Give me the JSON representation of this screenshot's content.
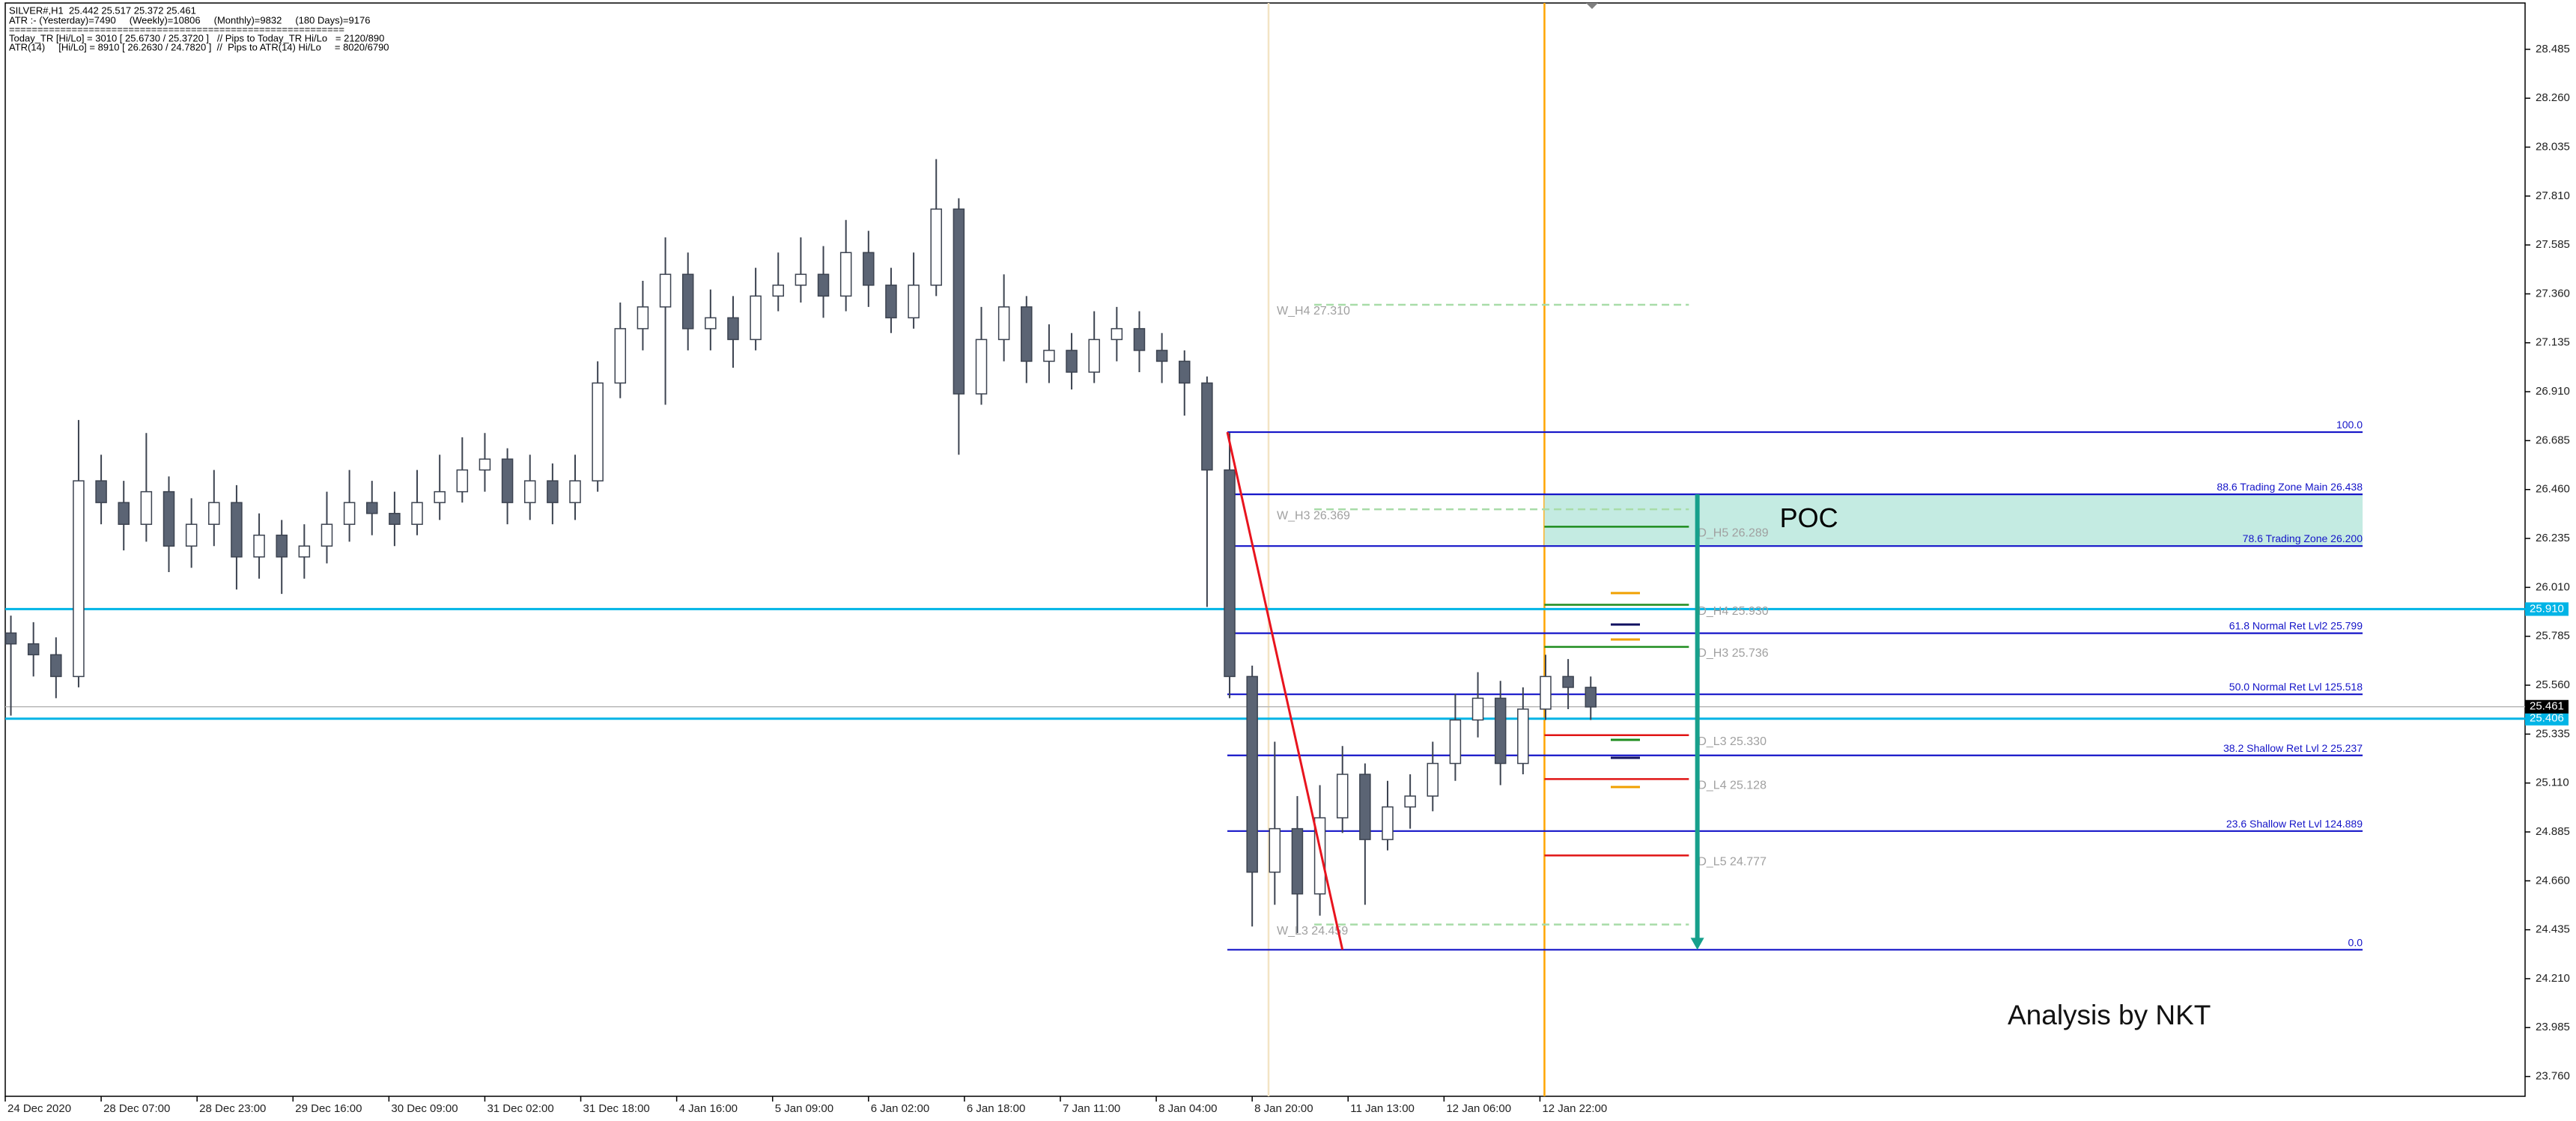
{
  "chart_data": {
    "type": "candlestick",
    "title": "SILVER#,H1  25.442 25.517 25.372 25.461",
    "info_lines": [
      "ATR :- (Yesterday)=7490     (Weekly)=10806     (Monthly)=9832     (180 Days)=9176",
      "===========================================================",
      "Today_TR [Hi/Lo] = 3010 [ 25.6730 / 25.3720 ]   // Pips to Today_TR Hi/Lo   = 2120/890",
      "ATR(14)     [Hi/Lo] = 8910 [ 26.2630 / 24.7820 ]  //  Pips to ATR(14) Hi/Lo     = 8020/6790"
    ],
    "x": [
      1,
      5,
      9,
      13,
      17,
      21,
      25,
      29,
      33,
      37,
      41,
      45,
      49,
      53,
      57,
      61,
      65,
      69,
      73,
      77,
      81,
      85,
      89,
      93,
      97,
      101,
      105,
      109,
      113,
      117,
      121,
      125,
      129,
      133,
      137,
      141,
      145,
      149,
      153,
      157,
      161,
      165,
      169,
      173,
      177,
      181,
      185,
      189,
      193,
      197,
      201,
      205,
      209,
      213,
      217,
      221,
      225,
      229,
      233,
      237,
      241,
      245,
      249,
      253,
      257,
      261,
      265,
      269,
      273,
      277,
      281
    ],
    "open": [
      25.8,
      25.75,
      25.7,
      25.6,
      26.5,
      26.4,
      26.3,
      26.45,
      26.2,
      26.3,
      26.4,
      26.15,
      26.25,
      26.15,
      26.2,
      26.3,
      26.4,
      26.35,
      26.3,
      26.4,
      26.45,
      26.55,
      26.6,
      26.4,
      26.5,
      26.4,
      26.5,
      26.95,
      27.2,
      27.3,
      27.45,
      27.2,
      27.25,
      27.15,
      27.35,
      27.4,
      27.45,
      27.35,
      27.55,
      27.4,
      27.25,
      27.4,
      27.75,
      26.9,
      27.15,
      27.3,
      27.05,
      27.1,
      27.0,
      27.15,
      27.2,
      27.1,
      27.05,
      26.95,
      26.55,
      25.6,
      24.7,
      24.9,
      24.6,
      24.95,
      25.15,
      24.85,
      25.0,
      25.05,
      25.2,
      25.4,
      25.5,
      25.2,
      25.45,
      25.6,
      25.55
    ],
    "high": [
      25.88,
      25.85,
      25.78,
      26.78,
      26.62,
      26.5,
      26.72,
      26.52,
      26.42,
      26.55,
      26.48,
      26.35,
      26.32,
      26.3,
      26.45,
      26.55,
      26.5,
      26.45,
      26.55,
      26.62,
      26.7,
      26.72,
      26.65,
      26.62,
      26.58,
      26.62,
      27.05,
      27.32,
      27.42,
      27.62,
      27.55,
      27.38,
      27.35,
      27.48,
      27.55,
      27.62,
      27.58,
      27.7,
      27.65,
      27.48,
      27.55,
      27.98,
      27.8,
      27.3,
      27.45,
      27.35,
      27.22,
      27.18,
      27.28,
      27.3,
      27.28,
      27.18,
      27.1,
      26.98,
      26.72,
      25.65,
      25.3,
      25.05,
      25.1,
      25.28,
      25.2,
      25.12,
      25.15,
      25.3,
      25.52,
      25.62,
      25.58,
      25.55,
      25.7,
      25.68,
      25.6
    ],
    "low": [
      25.42,
      25.6,
      25.5,
      25.55,
      26.3,
      26.18,
      26.22,
      26.08,
      26.1,
      26.2,
      26.0,
      26.05,
      25.98,
      26.05,
      26.12,
      26.22,
      26.25,
      26.2,
      26.25,
      26.32,
      26.4,
      26.45,
      26.3,
      26.32,
      26.3,
      26.32,
      26.45,
      26.88,
      27.1,
      26.85,
      27.1,
      27.1,
      27.02,
      27.1,
      27.28,
      27.32,
      27.25,
      27.28,
      27.3,
      27.18,
      27.2,
      27.35,
      26.62,
      26.85,
      27.05,
      26.95,
      26.95,
      26.92,
      26.95,
      27.05,
      27.0,
      26.95,
      26.8,
      25.92,
      25.5,
      24.45,
      24.55,
      24.42,
      24.5,
      24.88,
      24.55,
      24.8,
      24.9,
      24.98,
      25.12,
      25.32,
      25.1,
      25.15,
      25.4,
      25.45,
      25.4
    ],
    "close": [
      25.75,
      25.7,
      25.6,
      26.5,
      26.4,
      26.3,
      26.45,
      26.2,
      26.3,
      26.4,
      26.15,
      26.25,
      26.15,
      26.2,
      26.3,
      26.4,
      26.35,
      26.3,
      26.4,
      26.45,
      26.55,
      26.6,
      26.4,
      26.5,
      26.4,
      26.5,
      26.95,
      27.2,
      27.3,
      27.45,
      27.2,
      27.25,
      27.15,
      27.35,
      27.4,
      27.45,
      27.35,
      27.55,
      27.4,
      27.25,
      27.4,
      27.75,
      26.9,
      27.15,
      27.3,
      27.05,
      27.1,
      27.0,
      27.15,
      27.2,
      27.1,
      27.05,
      26.95,
      26.55,
      25.6,
      24.7,
      24.9,
      24.6,
      24.95,
      25.15,
      24.85,
      25.0,
      25.05,
      25.2,
      25.4,
      25.5,
      25.2,
      25.45,
      25.6,
      25.55,
      25.46
    ],
    "up_color": "#ffffff",
    "down_color": "#5b6474",
    "wick_color": "#3c4350",
    "xlim": [
      0,
      446.6
    ],
    "xticks": [
      {
        "value": 0,
        "label": "24 Dec 2020"
      },
      {
        "value": 17,
        "label": "28 Dec 07:00"
      },
      {
        "value": 34,
        "label": "28 Dec 23:00"
      },
      {
        "value": 51,
        "label": "29 Dec 16:00"
      },
      {
        "value": 68,
        "label": "30 Dec 09:00"
      },
      {
        "value": 85,
        "label": "31 Dec 02:00"
      },
      {
        "value": 102,
        "label": "31 Dec 18:00"
      },
      {
        "value": 119,
        "label": "4 Jan 16:00"
      },
      {
        "value": 136,
        "label": "5 Jan 09:00"
      },
      {
        "value": 153,
        "label": "6 Jan 02:00"
      },
      {
        "value": 170,
        "label": "6 Jan 18:00"
      },
      {
        "value": 187,
        "label": "7 Jan 11:00"
      },
      {
        "value": 204,
        "label": "8 Jan 04:00"
      },
      {
        "value": 221,
        "label": "8 Jan 20:00"
      },
      {
        "value": 238,
        "label": "11 Jan 13:00"
      },
      {
        "value": 255,
        "label": "12 Jan 06:00"
      },
      {
        "value": 272,
        "label": "12 Jan 22:00"
      }
    ],
    "ylim": [
      23.669,
      28.698
    ],
    "yticks": [
      28.485,
      {
        "value": 28.26,
        "label": "28.260"
      },
      28.035,
      {
        "value": 27.81,
        "label": "27.810"
      },
      27.585,
      {
        "value": 27.36,
        "label": "27.360"
      },
      27.135,
      {
        "value": 26.91,
        "label": "26.910"
      },
      26.685,
      {
        "value": 26.46,
        "label": "26.460"
      },
      26.235,
      {
        "value": 26.01,
        "label": "26.010"
      },
      25.785,
      {
        "value": 25.56,
        "label": "25.560"
      },
      25.335,
      {
        "value": 25.11,
        "label": "25.110"
      },
      24.885,
      {
        "value": 24.66,
        "label": "24.660"
      },
      24.435,
      {
        "value": 24.21,
        "label": "24.210"
      },
      23.985,
      {
        "value": 23.76,
        "label": "23.760"
      }
    ],
    "horizontal_lines": [
      {
        "value": 25.91,
        "label": "25.910",
        "color": "#00b4e6"
      },
      {
        "value": 25.406,
        "label": "25.406",
        "color": "#00b4e6"
      }
    ],
    "current_price": {
      "value": 25.461,
      "label": "25.461",
      "color": "#000000"
    },
    "vertical_lines": [
      {
        "x": 223.9,
        "color": "#f3e4c4"
      },
      {
        "x": 272.8,
        "color": "#ffa500"
      }
    ],
    "trendline": {
      "x": [
        216.6,
        237.0
      ],
      "y": [
        26.724,
        24.343
      ],
      "color": "#e8141e"
    },
    "fibonacci": {
      "x": [
        216.6,
        417.8
      ],
      "color": "#1414c8",
      "levels": [
        {
          "label": "100.0",
          "price": 26.724
        },
        {
          "label": "88.6 Trading Zone Main 26.438",
          "price": 26.438
        },
        {
          "label": "78.6 Trading Zone 26.200",
          "price": 26.2
        },
        {
          "label": "61.8 Normal Ret Lvl2 25.799",
          "price": 25.799
        },
        {
          "label": "50.0 Normal Ret Lvl 125.518",
          "price": 25.518
        },
        {
          "label": "38.2 Shallow Ret Lvl 2 25.237",
          "price": 25.237
        },
        {
          "label": "23.6 Shallow Ret Lvl 124.889",
          "price": 24.889
        },
        {
          "label": "0.0",
          "price": 24.343
        }
      ]
    },
    "zone": {
      "label": "POC",
      "x": [
        272.8,
        417.8
      ],
      "y": [
        26.2,
        26.438
      ],
      "color": "#c4ebe2"
    },
    "arrow": {
      "x": 299.9,
      "y": [
        26.438,
        24.343
      ],
      "color": "#17a08c"
    },
    "pivots": [
      {
        "label": "W_H4 27.310",
        "price": 27.31,
        "x": [
          232,
          298.4
        ],
        "color": "#a8dca8",
        "dashed": true
      },
      {
        "label": "W_H3 26.369",
        "price": 26.369,
        "x": [
          232,
          298.4
        ],
        "color": "#a8dca8",
        "dashed": true
      },
      {
        "label": "D_H5 26.289",
        "price": 26.289,
        "x": [
          272.8,
          298.4
        ],
        "color": "#1e8c1e",
        "dashed": false
      },
      {
        "label": "D_H4 25.930",
        "price": 25.93,
        "x": [
          272.8,
          298.4
        ],
        "color": "#1e8c1e",
        "dashed": false
      },
      {
        "label": "D_H3 25.736",
        "price": 25.736,
        "x": [
          272.8,
          298.4
        ],
        "color": "#1e8c1e",
        "dashed": false
      },
      {
        "label": "D_L3 25.330",
        "price": 25.33,
        "x": [
          272.8,
          298.4
        ],
        "color": "#e01414",
        "dashed": false
      },
      {
        "label": "D_L4 25.128",
        "price": 25.128,
        "x": [
          272.8,
          298.4
        ],
        "color": "#e01414",
        "dashed": false
      },
      {
        "label": "D_L5 24.777",
        "price": 24.777,
        "x": [
          272.8,
          298.4
        ],
        "color": "#e01414",
        "dashed": false
      },
      {
        "label": "W_L3 24.459",
        "price": 24.459,
        "x": [
          232,
          298.4
        ],
        "color": "#a8dca8",
        "dashed": true
      }
    ],
    "annotation": "Analysis by NKT"
  }
}
